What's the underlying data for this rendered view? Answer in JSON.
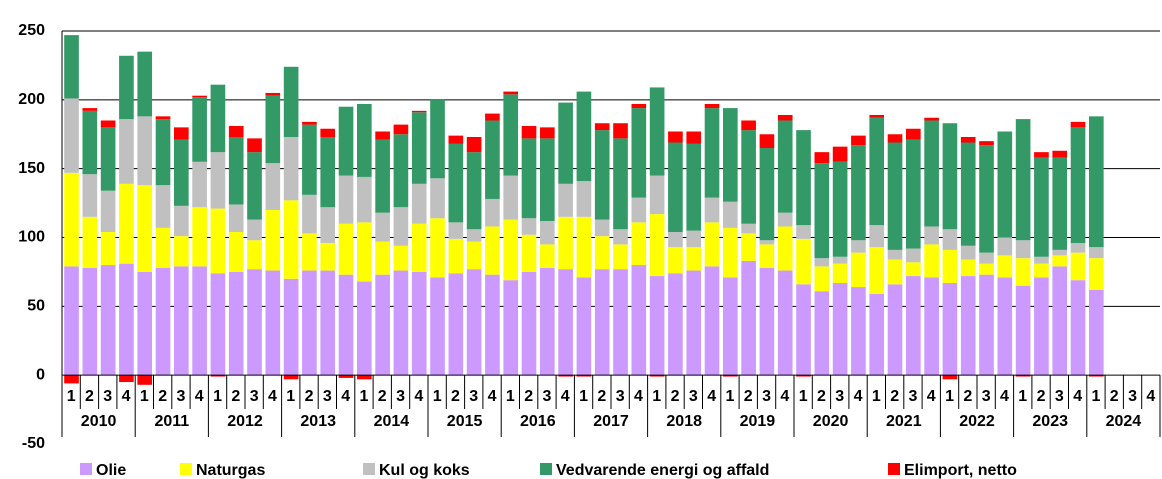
{
  "chart_data": {
    "type": "stacked-bar",
    "categories": [
      "1",
      "2",
      "3",
      "4",
      "1",
      "2",
      "3",
      "4",
      "1",
      "2",
      "3",
      "4",
      "1",
      "2",
      "3",
      "4",
      "1",
      "2",
      "3",
      "4",
      "1",
      "2",
      "3",
      "4",
      "1",
      "2",
      "3",
      "4",
      "1",
      "2",
      "3",
      "4",
      "1",
      "2",
      "3",
      "4",
      "1",
      "2",
      "3",
      "4",
      "1",
      "2",
      "3",
      "4",
      "1",
      "2",
      "3",
      "4",
      "1",
      "2",
      "3",
      "4",
      "1",
      "2",
      "3",
      "4",
      "1",
      "2",
      "3",
      "4"
    ],
    "years": [
      "2010",
      "2011",
      "2012",
      "2013",
      "2014",
      "2015",
      "2016",
      "2017",
      "2018",
      "2019",
      "2020",
      "2021",
      "2022",
      "2023",
      "2024"
    ],
    "ylim": [
      -50,
      250
    ],
    "yticks": [
      -50,
      0,
      50,
      100,
      150,
      200,
      250
    ],
    "grid": true,
    "series": [
      {
        "name": "Olie",
        "color": "#cc99ff",
        "values": [
          79,
          78,
          80,
          81,
          75,
          78,
          79,
          79,
          74,
          75,
          77,
          76,
          70,
          76,
          76,
          73,
          68,
          73,
          76,
          75,
          71,
          74,
          77,
          73,
          69,
          75,
          78,
          77,
          71,
          77,
          77,
          80,
          72,
          74,
          76,
          79,
          71,
          83,
          78,
          76,
          66,
          61,
          67,
          64,
          59,
          66,
          72,
          71,
          67,
          72,
          73,
          71,
          65,
          71,
          79,
          69,
          62,
          null,
          null,
          null
        ]
      },
      {
        "name": "Naturgas",
        "color": "#ffff00",
        "values": [
          68,
          37,
          24,
          58,
          63,
          29,
          22,
          43,
          47,
          29,
          21,
          44,
          57,
          27,
          20,
          37,
          43,
          24,
          18,
          35,
          43,
          25,
          20,
          35,
          44,
          27,
          17,
          38,
          44,
          24,
          18,
          31,
          45,
          19,
          17,
          32,
          36,
          20,
          17,
          32,
          33,
          18,
          14,
          25,
          34,
          18,
          10,
          24,
          24,
          12,
          8,
          16,
          20,
          10,
          8,
          20,
          23,
          null,
          null,
          null
        ]
      },
      {
        "name": "Kul og koks",
        "color": "#c0c0c0",
        "values": [
          54,
          31,
          30,
          47,
          50,
          31,
          22,
          33,
          41,
          20,
          15,
          34,
          46,
          28,
          26,
          35,
          33,
          21,
          28,
          29,
          29,
          12,
          9,
          20,
          32,
          12,
          17,
          24,
          26,
          12,
          11,
          18,
          28,
          11,
          12,
          18,
          19,
          7,
          3,
          10,
          10,
          6,
          5,
          9,
          16,
          7,
          10,
          13,
          15,
          10,
          8,
          13,
          13,
          5,
          4,
          7,
          8,
          null,
          null,
          null
        ]
      },
      {
        "name": "Vedvarende energi og affald",
        "color": "#339966",
        "values": [
          46,
          46,
          46,
          46,
          47,
          48,
          48,
          47,
          49,
          49,
          49,
          49,
          51,
          51,
          51,
          50,
          53,
          53,
          53,
          52,
          57,
          57,
          56,
          57,
          59,
          58,
          60,
          59,
          65,
          65,
          66,
          65,
          64,
          65,
          63,
          65,
          68,
          68,
          67,
          67,
          69,
          69,
          69,
          69,
          78,
          78,
          79,
          77,
          77,
          75,
          78,
          77,
          88,
          72,
          67,
          84,
          95,
          null,
          null,
          null
        ]
      },
      {
        "name": "Elimport, netto",
        "color": "#ff0000",
        "values": [
          -6,
          2,
          5,
          -5,
          -7,
          2,
          9,
          1,
          -1,
          8,
          10,
          2,
          -3,
          2,
          6,
          -2,
          -3,
          6,
          7,
          1,
          0,
          6,
          11,
          5,
          2,
          9,
          8,
          -1,
          -1,
          5,
          11,
          3,
          -1,
          8,
          9,
          3,
          -1,
          7,
          10,
          4,
          -1,
          8,
          11,
          7,
          2,
          6,
          8,
          2,
          -3,
          4,
          3,
          0,
          -1,
          4,
          5,
          4,
          -1,
          null,
          null,
          null
        ]
      }
    ]
  }
}
